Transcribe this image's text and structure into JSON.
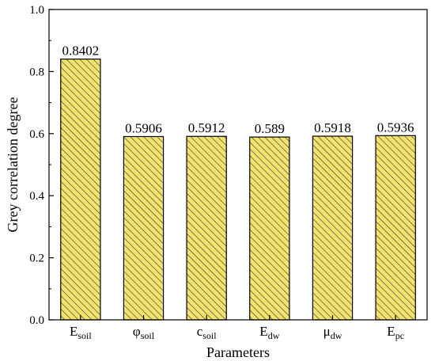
{
  "chart_data": {
    "type": "bar",
    "categories": [
      {
        "main": "E",
        "sub": "soil"
      },
      {
        "main": "φ",
        "sub": "soil"
      },
      {
        "main": "c",
        "sub": "soil"
      },
      {
        "main": "E",
        "sub": "dw"
      },
      {
        "main": "μ",
        "sub": "dw"
      },
      {
        "main": "E",
        "sub": "pc"
      }
    ],
    "values": [
      0.8402,
      0.5906,
      0.5912,
      0.589,
      0.5918,
      0.5936
    ],
    "data_labels": [
      "0.8402",
      "0.5906",
      "0.5912",
      "0.589",
      "0.5918",
      "0.5936"
    ],
    "xlabel": "Parameters",
    "ylabel": "Grey correlation degree",
    "ylim": [
      0,
      1.0
    ],
    "yticks": [
      "0.0",
      "0.2",
      "0.4",
      "0.6",
      "0.8",
      "1.0"
    ],
    "grid": false,
    "bar_fill": "#f2e36e",
    "hatch_color": "#333333"
  }
}
